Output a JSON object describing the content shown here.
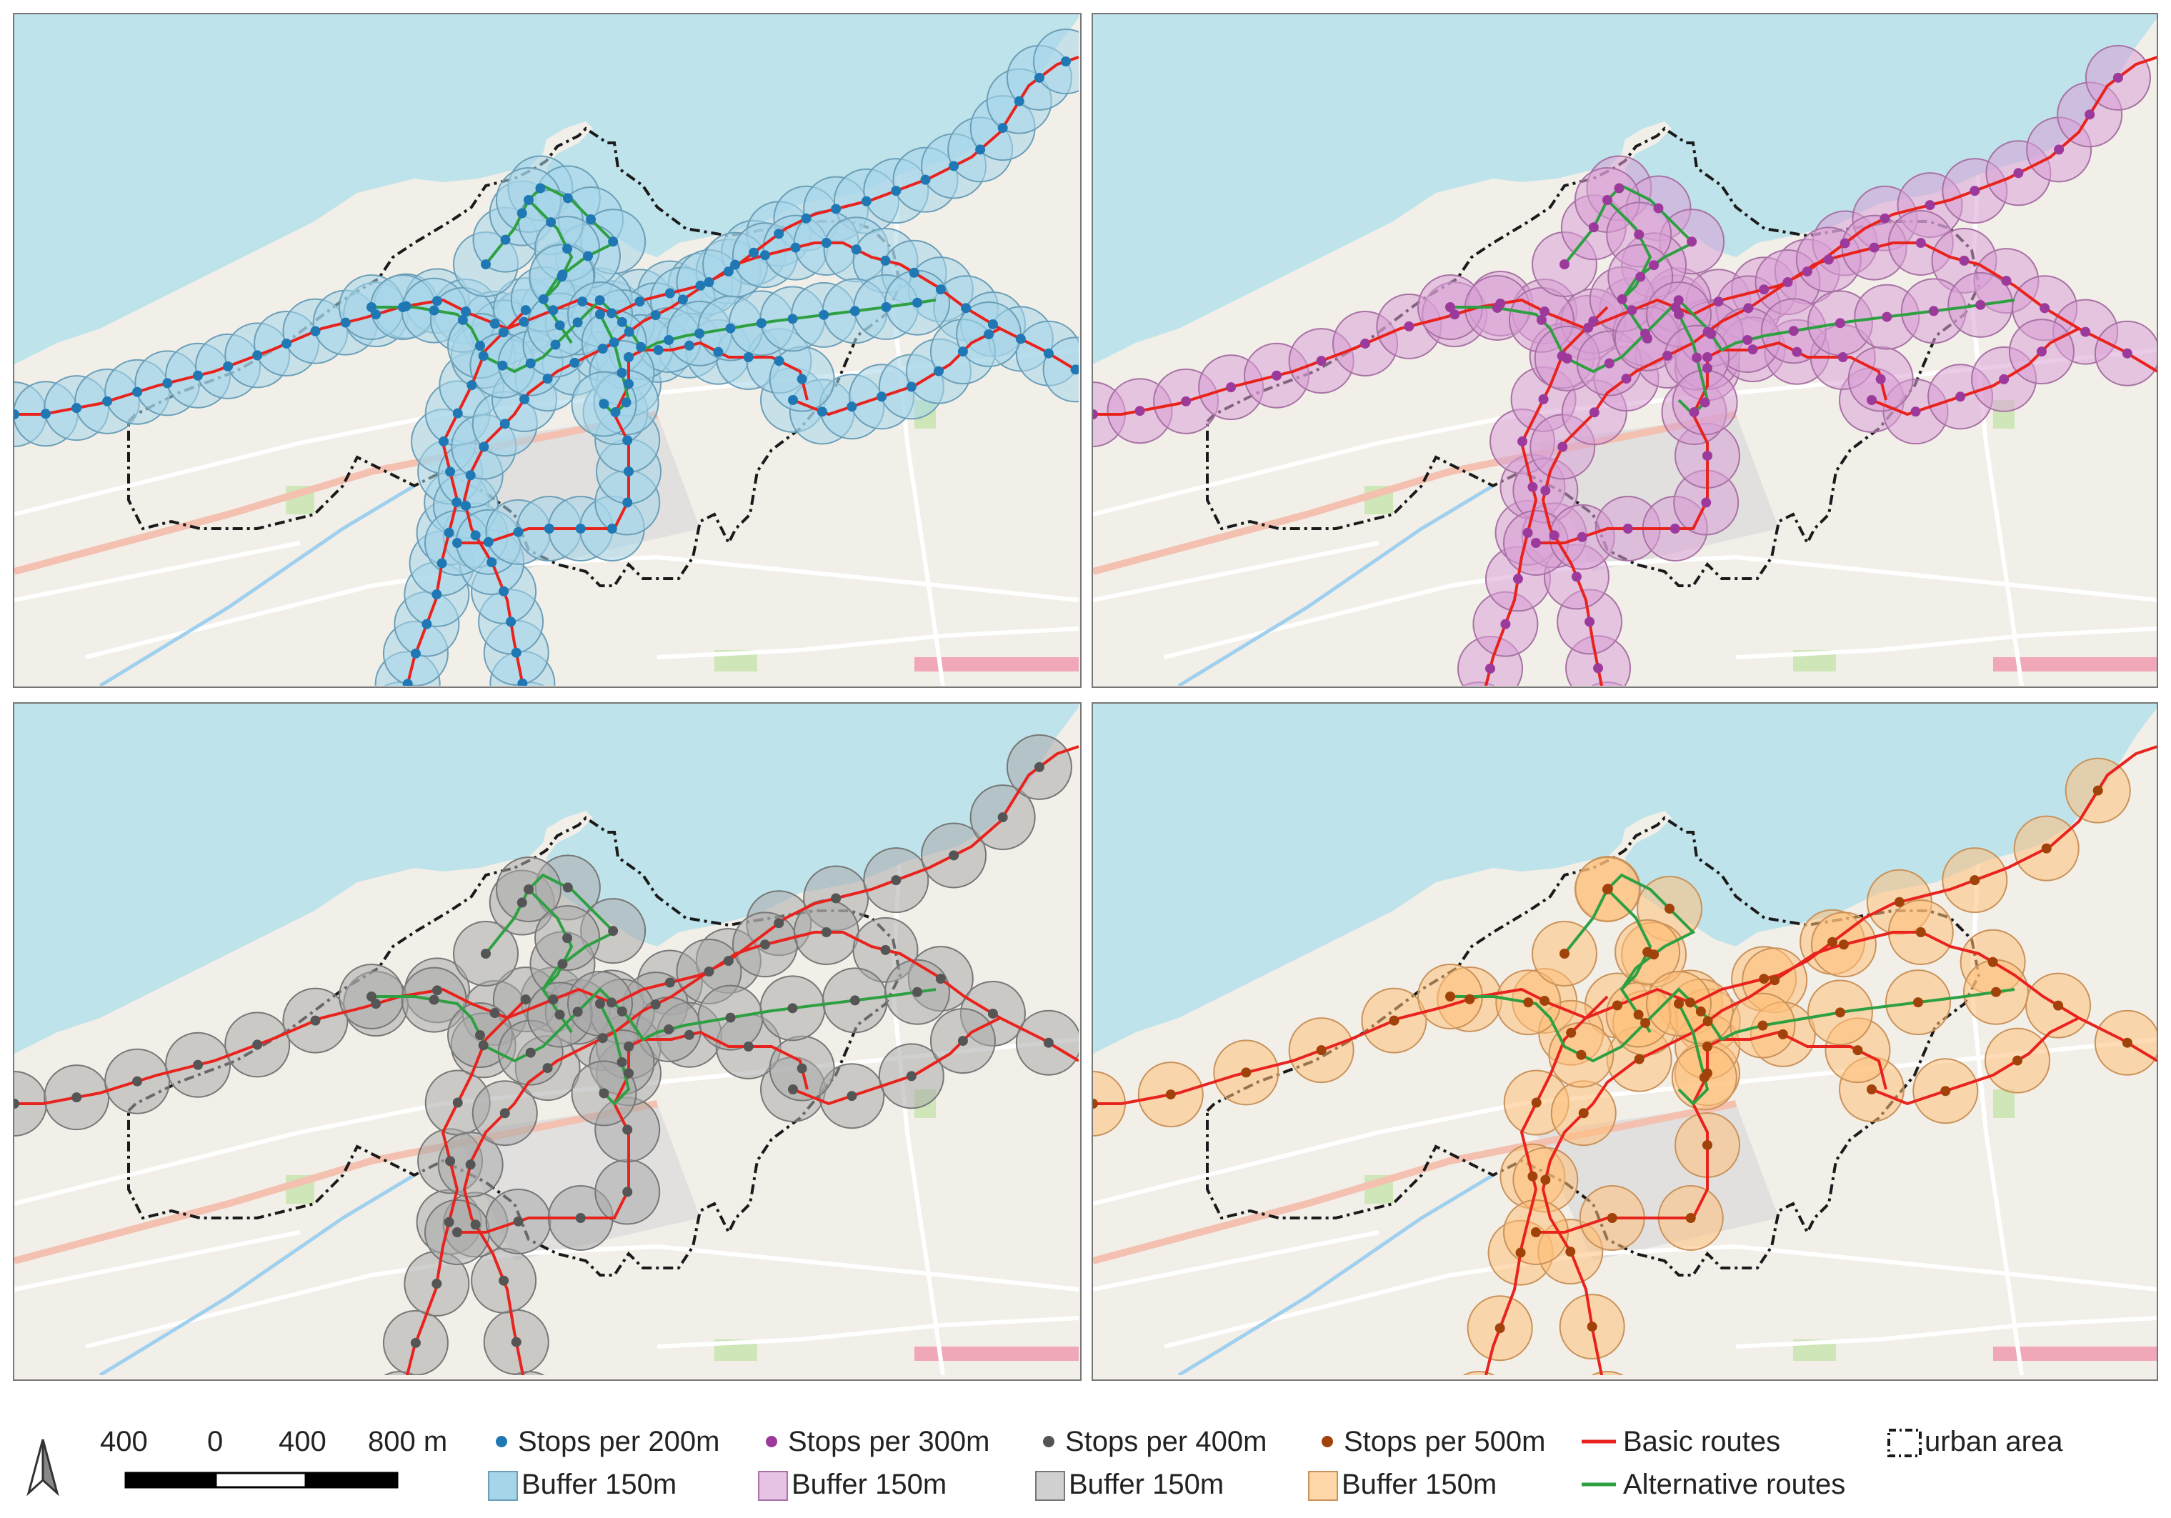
{
  "panels": [
    {
      "id": "p1",
      "interval": 200,
      "stop_color": "#1f78b4",
      "buffer_fill": "#a6d5ea",
      "buffer_stroke": "#6b9fb8"
    },
    {
      "id": "p2",
      "interval": 300,
      "stop_color": "#9c3a9c",
      "buffer_fill": "#d9a0d6",
      "buffer_stroke": "#a872a5"
    },
    {
      "id": "p3",
      "interval": 400,
      "stop_color": "#555555",
      "buffer_fill": "#a9a9a9",
      "buffer_stroke": "#777777"
    },
    {
      "id": "p4",
      "interval": 500,
      "stop_color": "#a0420a",
      "buffer_fill": "#ffbf7a",
      "buffer_stroke": "#c9925a"
    }
  ],
  "colors": {
    "sea": "#bfe3ea",
    "land": "#f2efe9",
    "basic_route": "#e8231d",
    "alternative_route": "#2ea042",
    "urban_boundary": "#1a1a1a"
  },
  "scalebar": {
    "labels": [
      "400",
      "0",
      "400",
      "800 m"
    ]
  },
  "north_arrow": "north-arrow-icon",
  "legend": {
    "stops200": "Stops per 200m",
    "stops300": "Stops per 300m",
    "stops400": "Stops per 400m",
    "stops500": "Stops per 500m",
    "buffer1": "Buffer 150m",
    "buffer2": "Buffer 150m",
    "buffer3": "Buffer 150m",
    "buffer4": "Buffer 150m",
    "basic_routes": "Basic routes",
    "alternative_routes": "Alternative routes",
    "urban_area": "urban area"
  }
}
